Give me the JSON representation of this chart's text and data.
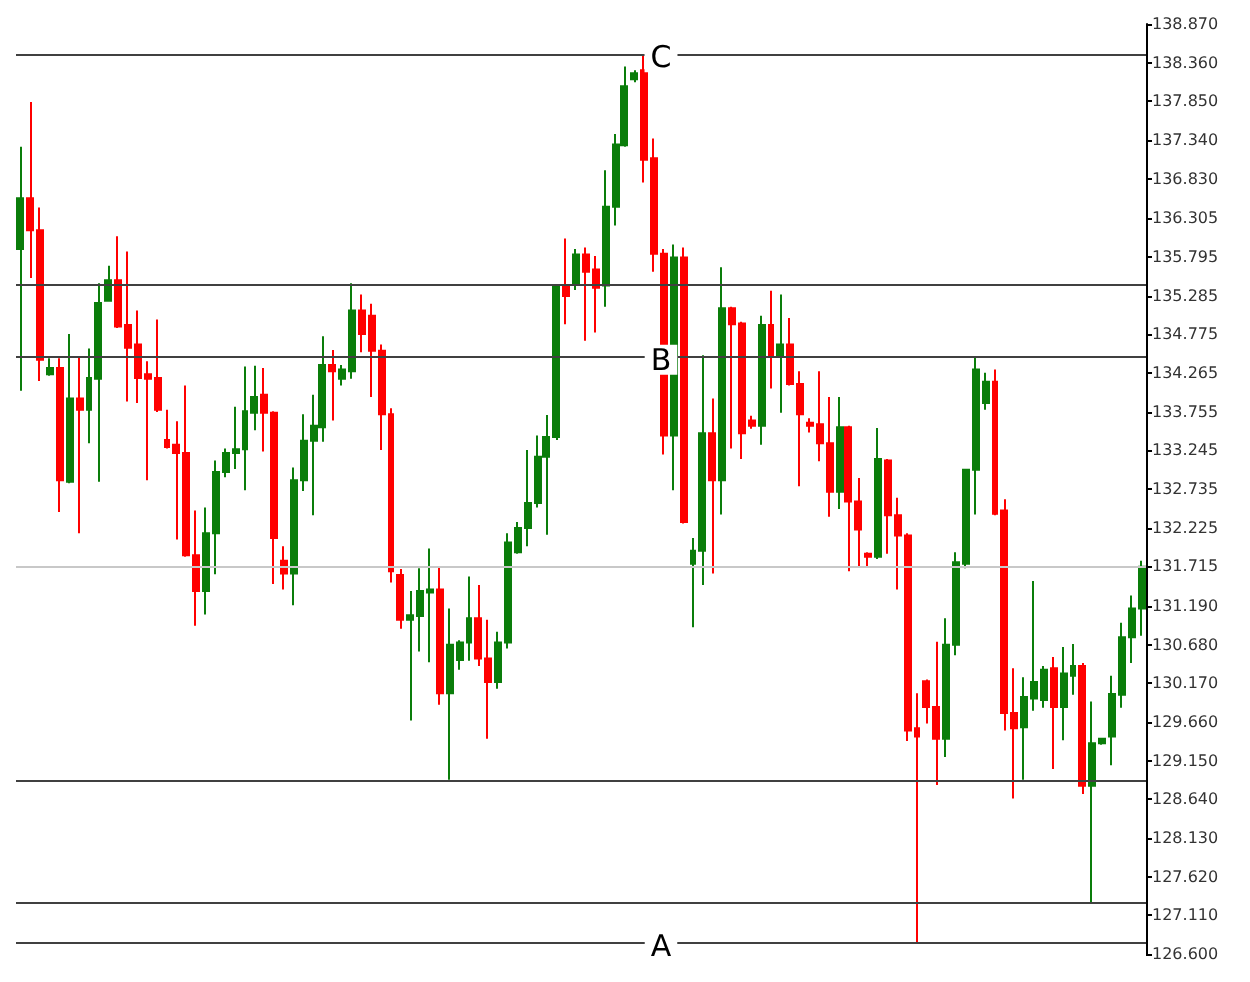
{
  "chart_data": {
    "type": "candlestick",
    "categories": [
      null,
      null,
      null,
      null,
      null,
      null,
      null,
      null,
      null,
      null,
      null,
      null,
      null,
      null,
      null,
      null,
      null,
      null,
      null,
      null,
      null,
      null,
      null,
      null,
      null,
      null,
      null,
      null,
      null,
      null,
      null,
      null,
      null,
      null,
      null,
      null,
      null,
      null,
      null,
      null,
      null,
      null,
      null,
      null,
      null,
      null,
      null,
      null,
      null,
      null,
      null,
      null,
      null,
      null,
      null,
      null,
      null,
      null,
      null,
      null,
      null,
      null,
      null,
      null,
      null,
      null,
      null,
      null,
      null,
      null,
      null,
      null,
      null,
      null,
      null,
      null,
      null,
      null,
      null,
      null,
      null,
      null,
      null,
      null,
      null,
      null,
      null,
      null,
      null,
      null,
      null,
      null,
      null,
      null,
      null,
      null,
      null,
      null,
      null,
      null,
      null,
      null,
      null,
      null,
      null,
      null,
      null,
      null,
      null,
      null,
      null,
      null,
      null,
      null,
      null,
      null
    ],
    "ohlc": [
      [
        135.9,
        137.25,
        134.03,
        136.57
      ],
      [
        136.57,
        137.84,
        135.52,
        136.15
      ],
      [
        136.15,
        136.45,
        134.16,
        134.44
      ],
      [
        134.25,
        134.46,
        134.23,
        134.33
      ],
      [
        134.33,
        134.46,
        132.43,
        132.85
      ],
      [
        132.83,
        134.78,
        132.81,
        133.93
      ],
      [
        133.93,
        134.48,
        132.15,
        133.78
      ],
      [
        133.78,
        134.59,
        133.34,
        134.2
      ],
      [
        134.19,
        135.45,
        132.83,
        135.19
      ],
      [
        135.22,
        135.68,
        135.22,
        135.49
      ],
      [
        135.49,
        136.07,
        134.86,
        134.88
      ],
      [
        134.9,
        135.87,
        133.89,
        134.6
      ],
      [
        134.64,
        135.09,
        133.87,
        134.2
      ],
      [
        134.25,
        134.42,
        132.85,
        134.19
      ],
      [
        134.2,
        134.97,
        133.75,
        133.78
      ],
      [
        133.38,
        133.78,
        133.27,
        133.29
      ],
      [
        133.32,
        133.63,
        132.07,
        133.21
      ],
      [
        133.21,
        134.1,
        131.84,
        131.86
      ],
      [
        131.86,
        132.45,
        130.93,
        131.39
      ],
      [
        131.39,
        132.49,
        131.08,
        132.15
      ],
      [
        132.15,
        133.11,
        131.61,
        132.96
      ],
      [
        132.96,
        133.27,
        132.89,
        133.21
      ],
      [
        133.21,
        133.82,
        133.0,
        133.26
      ],
      [
        133.26,
        134.35,
        132.72,
        133.76
      ],
      [
        133.74,
        134.36,
        133.51,
        133.95
      ],
      [
        133.98,
        134.33,
        133.23,
        133.74
      ],
      [
        133.74,
        133.76,
        131.48,
        132.09
      ],
      [
        131.79,
        131.98,
        131.41,
        131.62
      ],
      [
        131.62,
        133.02,
        131.2,
        132.85
      ],
      [
        132.85,
        133.72,
        132.71,
        133.37
      ],
      [
        133.37,
        133.98,
        132.39,
        133.57
      ],
      [
        133.55,
        134.75,
        133.36,
        134.37
      ],
      [
        134.37,
        134.57,
        133.64,
        134.29
      ],
      [
        134.19,
        134.37,
        134.1,
        134.31
      ],
      [
        134.29,
        135.45,
        134.19,
        135.09
      ],
      [
        135.09,
        135.3,
        134.54,
        134.78
      ],
      [
        135.02,
        135.18,
        133.95,
        134.56
      ],
      [
        134.56,
        134.64,
        133.25,
        133.72
      ],
      [
        133.72,
        133.8,
        131.5,
        131.65
      ],
      [
        131.6,
        131.68,
        130.89,
        131.01
      ],
      [
        131.01,
        131.39,
        129.68,
        131.07
      ],
      [
        131.06,
        131.69,
        130.59,
        131.39
      ],
      [
        131.37,
        131.95,
        130.45,
        131.41
      ],
      [
        131.41,
        131.72,
        129.89,
        130.04
      ],
      [
        130.04,
        131.16,
        128.9,
        130.68
      ],
      [
        130.48,
        130.74,
        130.35,
        130.71
      ],
      [
        130.71,
        131.58,
        130.47,
        131.03
      ],
      [
        131.03,
        131.47,
        130.4,
        130.5
      ],
      [
        130.5,
        131.01,
        129.44,
        130.19
      ],
      [
        130.19,
        130.85,
        130.1,
        130.71
      ],
      [
        130.71,
        132.15,
        130.63,
        132.03
      ],
      [
        131.9,
        132.3,
        131.88,
        132.22
      ],
      [
        132.22,
        133.25,
        131.98,
        132.55
      ],
      [
        132.55,
        133.44,
        132.49,
        133.16
      ],
      [
        133.16,
        133.71,
        132.13,
        133.42
      ],
      [
        133.42,
        135.42,
        133.38,
        135.42
      ],
      [
        135.42,
        136.04,
        134.91,
        135.28
      ],
      [
        135.45,
        135.9,
        135.36,
        135.83
      ],
      [
        135.83,
        135.92,
        134.69,
        135.6
      ],
      [
        135.63,
        135.81,
        134.8,
        135.39
      ],
      [
        135.42,
        136.94,
        135.14,
        136.46
      ],
      [
        136.46,
        137.42,
        136.21,
        137.28
      ],
      [
        137.27,
        138.31,
        137.25,
        138.05
      ],
      [
        138.14,
        138.26,
        138.1,
        138.22
      ],
      [
        138.26,
        138.47,
        136.78,
        137.08
      ],
      [
        137.1,
        137.36,
        135.6,
        135.84
      ],
      [
        135.84,
        135.9,
        133.19,
        133.44
      ],
      [
        133.44,
        135.96,
        132.72,
        135.79
      ],
      [
        135.79,
        135.92,
        132.28,
        132.3
      ],
      [
        131.75,
        132.09,
        130.91,
        131.92
      ],
      [
        131.92,
        134.5,
        131.47,
        133.47
      ],
      [
        133.47,
        133.93,
        131.62,
        132.85
      ],
      [
        132.85,
        135.66,
        132.4,
        135.12
      ],
      [
        135.12,
        135.14,
        133.27,
        134.91
      ],
      [
        134.92,
        134.94,
        133.13,
        133.47
      ],
      [
        133.64,
        133.7,
        133.53,
        133.57
      ],
      [
        133.57,
        135.02,
        133.32,
        134.9
      ],
      [
        134.9,
        135.35,
        134.06,
        134.48
      ],
      [
        134.5,
        135.3,
        133.74,
        134.64
      ],
      [
        134.64,
        134.99,
        134.1,
        134.12
      ],
      [
        134.12,
        134.29,
        132.77,
        133.72
      ],
      [
        133.61,
        133.67,
        133.48,
        133.57
      ],
      [
        133.59,
        134.29,
        133.1,
        133.34
      ],
      [
        133.34,
        133.95,
        132.37,
        132.7
      ],
      [
        132.7,
        133.95,
        132.47,
        133.55
      ],
      [
        133.55,
        133.57,
        131.65,
        132.57
      ],
      [
        132.57,
        132.88,
        131.71,
        132.2
      ],
      [
        131.88,
        131.9,
        131.71,
        131.84
      ],
      [
        131.84,
        133.54,
        131.81,
        133.13
      ],
      [
        133.11,
        133.13,
        131.88,
        132.39
      ],
      [
        132.39,
        132.62,
        131.41,
        132.12
      ],
      [
        132.12,
        132.15,
        129.41,
        129.55
      ],
      [
        129.58,
        130.04,
        126.74,
        129.47
      ],
      [
        130.2,
        130.22,
        129.64,
        129.86
      ],
      [
        129.86,
        130.72,
        128.83,
        129.44
      ],
      [
        129.44,
        131.03,
        129.2,
        130.68
      ],
      [
        130.68,
        131.9,
        130.54,
        131.77
      ],
      [
        131.75,
        133.0,
        131.69,
        132.99
      ],
      [
        132.99,
        134.48,
        132.4,
        134.31
      ],
      [
        133.87,
        134.27,
        133.78,
        134.15
      ],
      [
        134.15,
        134.31,
        132.39,
        132.41
      ],
      [
        132.45,
        132.6,
        129.55,
        129.78
      ],
      [
        129.78,
        130.37,
        128.65,
        129.58
      ],
      [
        129.59,
        130.25,
        128.9,
        129.99
      ],
      [
        129.97,
        131.52,
        129.81,
        130.19
      ],
      [
        129.95,
        130.4,
        129.85,
        130.35
      ],
      [
        130.37,
        130.52,
        129.04,
        129.86
      ],
      [
        129.86,
        130.65,
        129.42,
        130.3
      ],
      [
        130.27,
        130.69,
        130.02,
        130.4
      ],
      [
        130.4,
        130.44,
        128.71,
        128.82
      ],
      [
        128.82,
        129.93,
        127.27,
        129.38
      ],
      [
        129.38,
        129.44,
        129.36,
        129.44
      ],
      [
        129.47,
        130.27,
        129.09,
        130.03
      ],
      [
        130.02,
        130.97,
        129.85,
        130.78
      ],
      [
        130.78,
        131.33,
        130.44,
        131.16
      ],
      [
        131.16,
        131.79,
        130.8,
        131.71
      ]
    ],
    "colors": [
      "#0a7d0a",
      "#ff0000",
      "#ff0000",
      "#0a7d0a",
      "#ff0000",
      "#0a7d0a",
      "#ff0000",
      "#0a7d0a",
      "#0a7d0a",
      "#0a7d0a",
      "#ff0000",
      "#ff0000",
      "#ff0000",
      "#ff0000",
      "#ff0000",
      "#ff0000",
      "#ff0000",
      "#ff0000",
      "#ff0000",
      "#0a7d0a",
      "#0a7d0a",
      "#0a7d0a",
      "#0a7d0a",
      "#0a7d0a",
      "#0a7d0a",
      "#ff0000",
      "#ff0000",
      "#ff0000",
      "#0a7d0a",
      "#0a7d0a",
      "#0a7d0a",
      "#0a7d0a",
      "#ff0000",
      "#0a7d0a",
      "#0a7d0a",
      "#ff0000",
      "#ff0000",
      "#ff0000",
      "#ff0000",
      "#ff0000",
      "#0a7d0a",
      "#0a7d0a",
      "#0a7d0a",
      "#ff0000",
      "#0a7d0a",
      "#0a7d0a",
      "#0a7d0a",
      "#ff0000",
      "#ff0000",
      "#0a7d0a",
      "#0a7d0a",
      "#0a7d0a",
      "#0a7d0a",
      "#0a7d0a",
      "#0a7d0a",
      "#0a7d0a",
      "#ff0000",
      "#0a7d0a",
      "#ff0000",
      "#ff0000",
      "#0a7d0a",
      "#0a7d0a",
      "#0a7d0a",
      "#0a7d0a",
      "#ff0000",
      "#ff0000",
      "#ff0000",
      "#0a7d0a",
      "#ff0000",
      "#0a7d0a",
      "#0a7d0a",
      "#ff0000",
      "#0a7d0a",
      "#ff0000",
      "#ff0000",
      "#ff0000",
      "#0a7d0a",
      "#ff0000",
      "#0a7d0a",
      "#ff0000",
      "#ff0000",
      "#ff0000",
      "#ff0000",
      "#ff0000",
      "#0a7d0a",
      "#ff0000",
      "#ff0000",
      "#ff0000",
      "#0a7d0a",
      "#ff0000",
      "#ff0000",
      "#ff0000",
      "#ff0000",
      "#ff0000",
      "#ff0000",
      "#0a7d0a",
      "#0a7d0a",
      "#0a7d0a",
      "#0a7d0a",
      "#0a7d0a",
      "#ff0000",
      "#ff0000",
      "#ff0000",
      "#0a7d0a",
      "#0a7d0a",
      "#0a7d0a",
      "#ff0000",
      "#0a7d0a",
      "#0a7d0a",
      "#ff0000",
      "#0a7d0a",
      "#0a7d0a",
      "#0a7d0a",
      "#0a7d0a",
      "#0a7d0a",
      "#0a7d0a"
    ],
    "ylim": [
      126.6,
      138.87
    ],
    "yticks": [
      {
        "value": 138.87,
        "label": "138.870"
      },
      {
        "value": 138.36,
        "label": "138.360"
      },
      {
        "value": 137.85,
        "label": "137.850"
      },
      {
        "value": 137.34,
        "label": "137.340"
      },
      {
        "value": 136.83,
        "label": "136.830"
      },
      {
        "value": 136.305,
        "label": "136.305"
      },
      {
        "value": 135.795,
        "label": "135.795"
      },
      {
        "value": 135.285,
        "label": "135.285"
      },
      {
        "value": 134.775,
        "label": "134.775"
      },
      {
        "value": 134.265,
        "label": "134.265"
      },
      {
        "value": 133.755,
        "label": "133.755"
      },
      {
        "value": 133.245,
        "label": "133.245"
      },
      {
        "value": 132.735,
        "label": "132.735"
      },
      {
        "value": 132.225,
        "label": "132.225"
      },
      {
        "value": 131.715,
        "label": "131.715"
      },
      {
        "value": 131.19,
        "label": "131.190"
      },
      {
        "value": 130.68,
        "label": "130.680"
      },
      {
        "value": 130.17,
        "label": "130.170"
      },
      {
        "value": 129.66,
        "label": "129.660"
      },
      {
        "value": 129.15,
        "label": "129.150"
      },
      {
        "value": 128.64,
        "label": "128.640"
      },
      {
        "value": 128.13,
        "label": "128.130"
      },
      {
        "value": 127.62,
        "label": "127.620"
      },
      {
        "value": 127.11,
        "label": "127.110"
      },
      {
        "value": 126.6,
        "label": "126.600"
      }
    ],
    "ref_lines": [
      {
        "axis": "y",
        "value": 138.47,
        "label": "C",
        "color": "#404040"
      },
      {
        "axis": "y",
        "value": 135.44,
        "color": "#404040"
      },
      {
        "axis": "y",
        "value": 134.48,
        "label": "B",
        "color": "#404040"
      },
      {
        "axis": "y",
        "value": 131.715,
        "color": "#c8c8c8"
      },
      {
        "axis": "y",
        "value": 128.9,
        "color": "#404040"
      },
      {
        "axis": "y",
        "value": 127.27,
        "color": "#404040"
      },
      {
        "axis": "y",
        "value": 126.74,
        "label": "A",
        "color": "#404040"
      }
    ],
    "tick_labels": "y",
    "grid": false
  }
}
